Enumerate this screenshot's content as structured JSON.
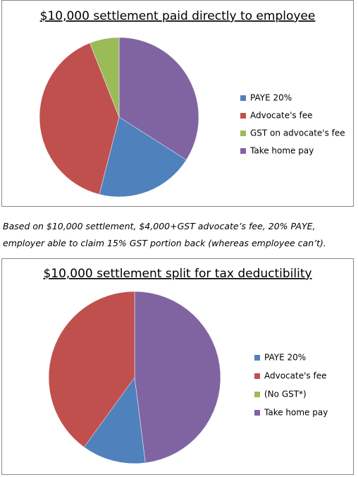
{
  "chart_data": [
    {
      "type": "pie",
      "title": "$10,000 settlement paid directly to employee",
      "categories": [
        "PAYE 20%",
        "Advocate's fee",
        "GST on advocate's fee",
        "Take home pay"
      ],
      "values": [
        2000,
        4000,
        600,
        3400
      ],
      "colors": [
        "#4F81BD",
        "#C0504D",
        "#9BBB59",
        "#8064A2"
      ]
    },
    {
      "type": "pie",
      "title": "$10,000 settlement split for tax deductibility",
      "categories": [
        "PAYE 20%",
        "Advocate's fee",
        "(No GST*)",
        "Take home pay"
      ],
      "values": [
        1200,
        4000,
        0,
        4800
      ],
      "colors": [
        "#4F81BD",
        "#C0504D",
        "#9BBB59",
        "#8064A2"
      ]
    }
  ],
  "note": [
    "Based on $10,000 settlement,  $4,000+GST advocate’s fee, 20% PAYE,",
    "employer able to claim 15% GST portion back (whereas employee can’t)."
  ]
}
